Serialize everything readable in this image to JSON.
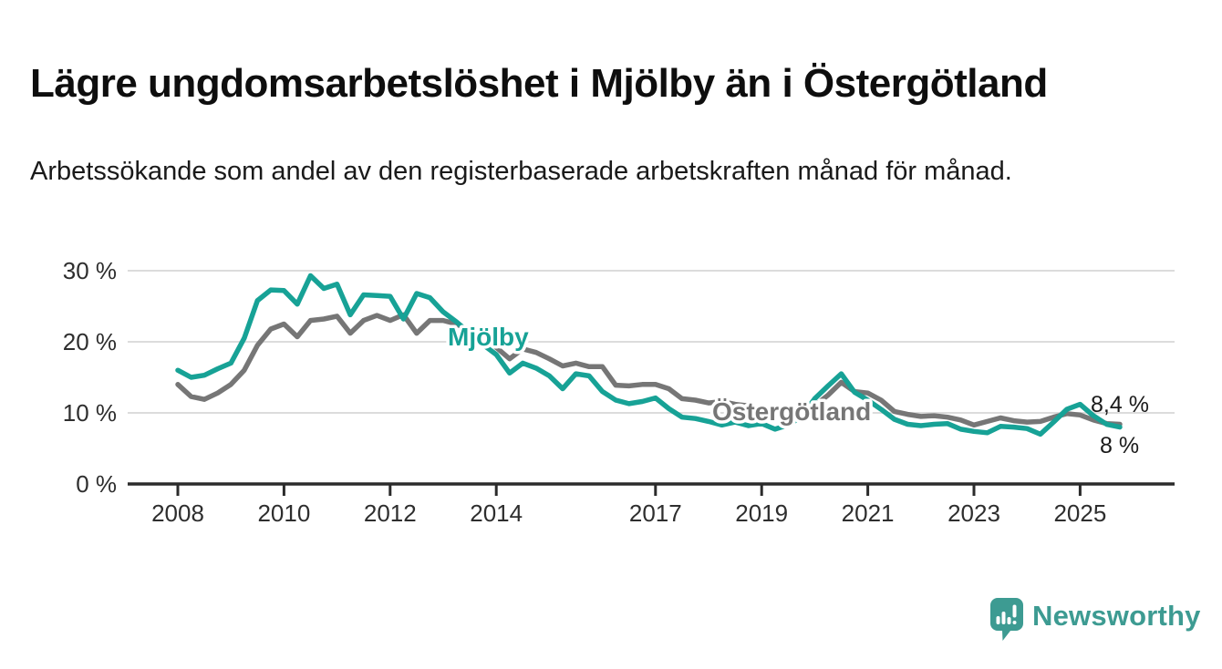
{
  "header": {
    "title": "Lägre ungdomsarbetslöshet i Mjölby än i Östergötland",
    "subtitle": "Arbetssökande som andel av den registerbaserade arbetskraften månad för månad."
  },
  "chart_data": {
    "type": "line",
    "title": "Lägre ungdomsarbetslöshet i Mjölby än i Östergötland",
    "subtitle": "Arbetssökande som andel av den registerbaserade arbetskraften månad för månad.",
    "grid": "horizontal-only",
    "legend_position": "inline-labels-on-lines",
    "xlim": [
      2007.85,
      2026.0
    ],
    "ylim": [
      0,
      32
    ],
    "yticks": [
      0,
      10,
      20,
      30
    ],
    "ytick_labels": [
      "0 %",
      "10 %",
      "20 %",
      "30 %"
    ],
    "xticks": [
      2008,
      2010,
      2012,
      2014,
      2017,
      2019,
      2021,
      2023,
      2025
    ],
    "xtick_labels": [
      "2008",
      "2010",
      "2012",
      "2014",
      "2017",
      "2019",
      "2021",
      "2023",
      "2025"
    ],
    "x": [
      2008.0,
      2008.25,
      2008.5,
      2008.75,
      2009.0,
      2009.25,
      2009.5,
      2009.75,
      2010.0,
      2010.25,
      2010.5,
      2010.75,
      2011.0,
      2011.25,
      2011.5,
      2011.75,
      2012.0,
      2012.25,
      2012.5,
      2012.75,
      2013.0,
      2013.25,
      2013.5,
      2013.75,
      2014.0,
      2014.25,
      2014.5,
      2014.75,
      2015.0,
      2015.25,
      2015.5,
      2015.75,
      2016.0,
      2016.25,
      2016.5,
      2016.75,
      2017.0,
      2017.25,
      2017.5,
      2017.75,
      2018.0,
      2018.25,
      2018.5,
      2018.75,
      2019.0,
      2019.25,
      2019.5,
      2019.75,
      2020.0,
      2020.25,
      2020.5,
      2020.75,
      2021.0,
      2021.25,
      2021.5,
      2021.75,
      2022.0,
      2022.25,
      2022.5,
      2022.75,
      2023.0,
      2023.25,
      2023.5,
      2023.75,
      2024.0,
      2024.25,
      2024.5,
      2024.75,
      2025.0,
      2025.25,
      2025.5,
      2025.75
    ],
    "series": [
      {
        "name": "Östergötland",
        "color": "#767676",
        "end_label": "8,4 %",
        "last_value": 8.4,
        "values": [
          14.0,
          12.3,
          11.9,
          12.8,
          14.0,
          16.0,
          19.5,
          21.8,
          22.5,
          20.7,
          23.0,
          23.2,
          23.6,
          21.2,
          23.0,
          23.7,
          23.0,
          23.8,
          21.2,
          23.0,
          23.0,
          22.5,
          21.5,
          20.5,
          19.2,
          17.6,
          19.0,
          18.5,
          17.6,
          16.6,
          17.0,
          16.5,
          16.5,
          13.9,
          13.8,
          14.0,
          14.0,
          13.4,
          12.0,
          11.8,
          11.4,
          11.6,
          11.2,
          11.0,
          10.2,
          9.8,
          9.9,
          10.3,
          11.0,
          12.5,
          14.3,
          13.0,
          12.8,
          11.8,
          10.2,
          9.8,
          9.5,
          9.6,
          9.4,
          9.0,
          8.3,
          8.8,
          9.3,
          8.9,
          8.7,
          8.8,
          9.4,
          9.9,
          9.7,
          9.0,
          8.5,
          8.4
        ]
      },
      {
        "name": "Mjölby",
        "color": "#17a296",
        "end_label": "8 %",
        "last_value": 8.0,
        "values": [
          16.0,
          15.0,
          15.3,
          16.2,
          17.0,
          20.5,
          25.8,
          27.3,
          27.2,
          25.3,
          29.3,
          27.5,
          28.1,
          23.8,
          26.6,
          26.5,
          26.4,
          23.2,
          26.8,
          26.2,
          24.2,
          22.8,
          21.2,
          19.6,
          18.2,
          15.6,
          17.0,
          16.3,
          15.2,
          13.4,
          15.5,
          15.2,
          13.0,
          11.8,
          11.3,
          11.6,
          12.1,
          10.6,
          9.4,
          9.2,
          8.8,
          8.3,
          8.7,
          8.2,
          8.5,
          7.7,
          8.3,
          9.5,
          12.0,
          13.8,
          15.5,
          12.9,
          11.8,
          10.5,
          9.1,
          8.4,
          8.2,
          8.4,
          8.5,
          7.7,
          7.4,
          7.2,
          8.1,
          8.0,
          7.8,
          7.0,
          8.7,
          10.5,
          11.2,
          9.6,
          8.4,
          8.0
        ]
      }
    ],
    "colors": {
      "grid": "#dcdcdc",
      "axis": "#2b2b2b",
      "tick_text": "#2e2e2e",
      "value_label_text": "#1a1a1a"
    }
  },
  "footer": {
    "brand": "Newsworthy",
    "brand_color": "#3d9b92"
  }
}
